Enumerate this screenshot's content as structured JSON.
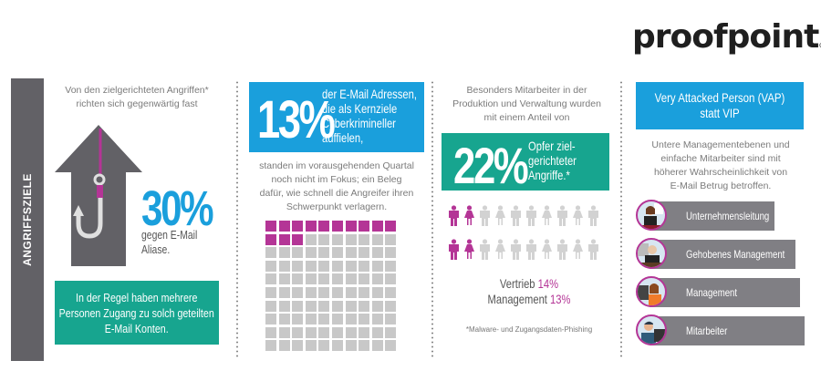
{
  "brand": {
    "logo_text": "proofpoint",
    "registered_mark": "®"
  },
  "colors": {
    "blue": "#1a9fdc",
    "teal": "#17a58f",
    "magenta": "#b43596",
    "dark_gray": "#626166",
    "light_gray": "#c8c8c8",
    "bar_gray": "#807f84"
  },
  "sidebar": {
    "label": "ANGRIFFSZIELE"
  },
  "panel1": {
    "intro": [
      "Von den zielgerichteten Angriffen*",
      "richten sich gegenwärtig fast"
    ],
    "percent": "30%",
    "caption": [
      "gegen E-Mail",
      "Aliase."
    ],
    "icon": "arrow-up-with-fishhook-icon",
    "box_text": [
      "In der Regel haben mehrere",
      "Personen Zugang zu solch geteilten",
      "E-Mail Konten."
    ]
  },
  "panel2": {
    "percent": "13%",
    "box_text": [
      "der E-Mail Adressen,",
      "die als Kernziele",
      "Cyberkrimineller",
      "auffielen,"
    ],
    "body": [
      "standen im vorausgehenden Quartal",
      "noch nicht im Fokus; ein Beleg",
      "dafür, wie schnell die Angreifer ihren",
      "Schwerpunkt verlagern."
    ],
    "waffle": {
      "total": 100,
      "highlighted": 13,
      "columns": 10
    }
  },
  "panel3": {
    "intro": [
      "Besonders Mitarbeiter in der",
      "Produktion und Verwaltung wurden",
      "mit einem Anteil von"
    ],
    "percent": "22%",
    "box_text": [
      "Opfer ziel-",
      "gerichteter",
      "Angriffe.*"
    ],
    "people": {
      "rows": 2,
      "per_row": 10,
      "highlighted_per_row": 2
    },
    "stats": [
      {
        "label": "Vertrieb",
        "value": "14%"
      },
      {
        "label": "Management",
        "value": "13%"
      }
    ],
    "footnote": "*Malware- und Zugangsdaten-Phishing"
  },
  "panel4": {
    "header": [
      "Very Attacked Person (VAP)",
      "statt VIP"
    ],
    "body": [
      "Untere Managementebenen und",
      "einfache Mitarbeiter sind mit",
      "höherer Wahrscheinlichkeit von",
      "E-Mail Betrug betroffen."
    ],
    "levels": [
      {
        "label": "Unternehmensleitung",
        "icon": "executive-avatar-icon"
      },
      {
        "label": "Gehobenes Management",
        "icon": "senior-manager-avatar-icon"
      },
      {
        "label": "Management",
        "icon": "manager-avatar-icon"
      },
      {
        "label": "Mitarbeiter",
        "icon": "employee-avatar-icon"
      }
    ]
  }
}
